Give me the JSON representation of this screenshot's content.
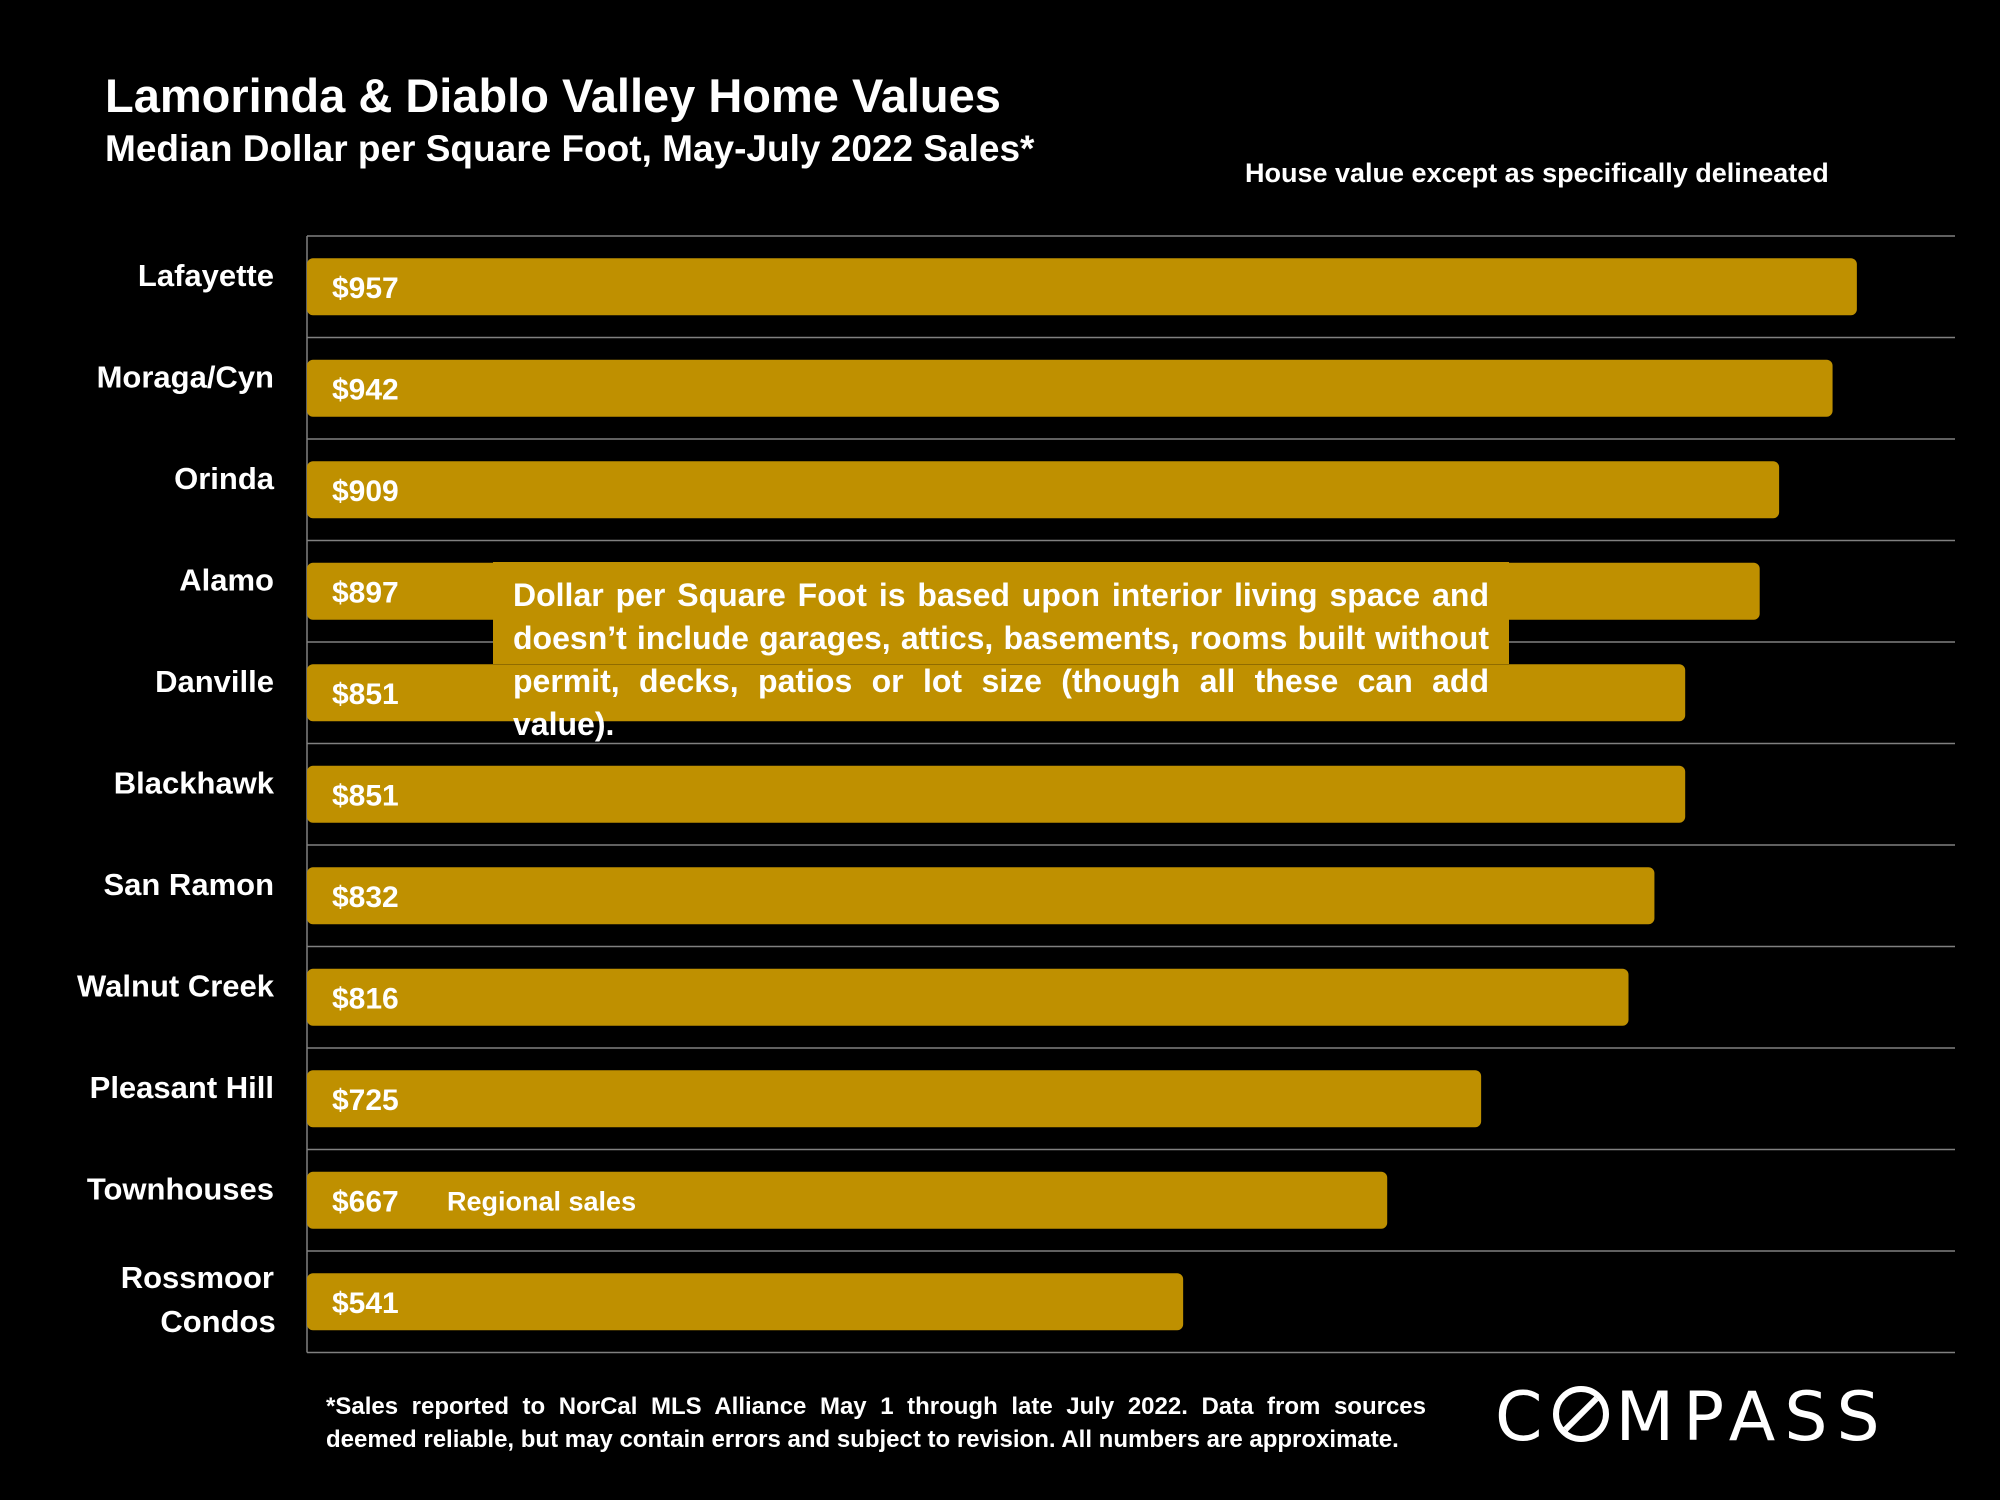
{
  "header": {
    "title": "Lamorinda & Diablo Valley Home Values",
    "subtitle": "Median Dollar per Square Foot, May-July 2022 Sales*",
    "note": "House value except as specifically delineated"
  },
  "callout": {
    "text": "Dollar per Square Foot is based upon interior living space and doesn’t include garages, attics, basements, rooms built without permit, decks, patios or lot size (though all these can add value)."
  },
  "footnote": {
    "text": "*Sales reported to NorCal MLS Alliance May 1 through late July 2022. Data from sources deemed reliable, but may contain errors and subject to revision. All numbers are approximate."
  },
  "logo": {
    "before": "C",
    "after": "MPASS"
  },
  "colors": {
    "bar": "#bf9000",
    "background": "#000000",
    "text": "#ffffff",
    "grid": "#808080"
  },
  "chart_data": {
    "type": "bar",
    "orientation": "horizontal",
    "categories": [
      "Lafayette",
      "Moraga/Cyn",
      "Orinda",
      "Alamo",
      "Danville",
      "Blackhawk",
      "San Ramon",
      "Walnut Creek",
      "Pleasant Hill",
      "Townhouses",
      "Rossmoor Condos"
    ],
    "values": [
      957,
      942,
      909,
      897,
      851,
      851,
      832,
      816,
      725,
      667,
      541
    ],
    "data_labels": [
      "$957",
      "$942",
      "$909",
      "$897",
      "$851",
      "$851",
      "$832",
      "$816",
      "$725",
      "$667",
      "$541"
    ],
    "annotations": [
      {
        "category": "Townhouses",
        "text": "Regional sales"
      }
    ],
    "xlim": [
      0,
      1000
    ],
    "grid": "horizontal separators",
    "legend": "none"
  }
}
